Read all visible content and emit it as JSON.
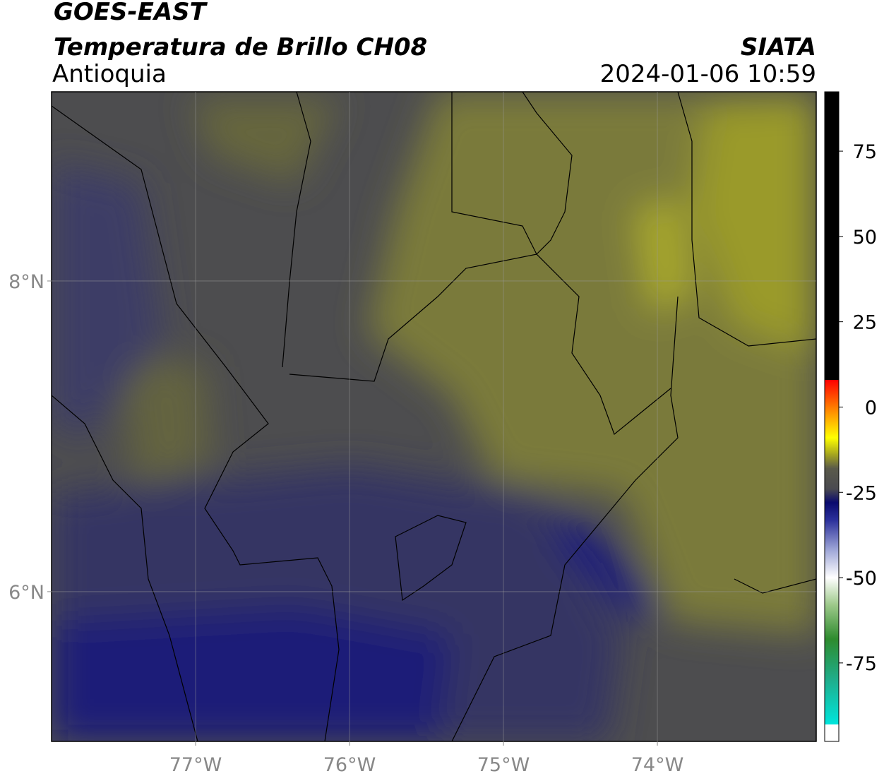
{
  "chart_data": {
    "type": "map",
    "title": "GOES-EAST",
    "subtitle": "Temperatura de Brillo CH08",
    "region": "Antioquia",
    "source": "SIATA",
    "datetime": "2024-01-06 10:59",
    "xlim": [
      -77.936,
      -72.968
    ],
    "ylim": [
      5.036,
      9.218
    ],
    "xticks": [
      {
        "value": -77,
        "label": "77°W"
      },
      {
        "value": -76,
        "label": "76°W"
      },
      {
        "value": -75,
        "label": "75°W"
      },
      {
        "value": -74,
        "label": "74°W"
      }
    ],
    "yticks": [
      {
        "value": 6,
        "label": "6°N"
      },
      {
        "value": 8,
        "label": "8°N"
      }
    ],
    "grid": true,
    "colorbar": {
      "clim": [
        -98,
        92.4
      ],
      "ticks": [
        75,
        50,
        25,
        0,
        -25,
        -50,
        -75
      ],
      "colormap": [
        [
          -98,
          "#ffffff"
        ],
        [
          -93,
          "#ffffff"
        ],
        [
          -93,
          "#00e5dc"
        ],
        [
          -80,
          "#1fae8c"
        ],
        [
          -68,
          "#2e8b2e"
        ],
        [
          -58,
          "#9dc98a"
        ],
        [
          -50,
          "#ffffff"
        ],
        [
          -42,
          "#a0a8d8"
        ],
        [
          -33,
          "#2a2f9a"
        ],
        [
          -28,
          "#0a0a6e"
        ],
        [
          -24,
          "#4a4a50"
        ],
        [
          -18,
          "#5a5a4a"
        ],
        [
          -14,
          "#a4a420"
        ],
        [
          -9,
          "#ffff00"
        ],
        [
          -2,
          "#ff9900"
        ],
        [
          8,
          "#ff0000"
        ],
        [
          8,
          "#000000"
        ],
        [
          92.4,
          "#000000"
        ]
      ]
    }
  }
}
